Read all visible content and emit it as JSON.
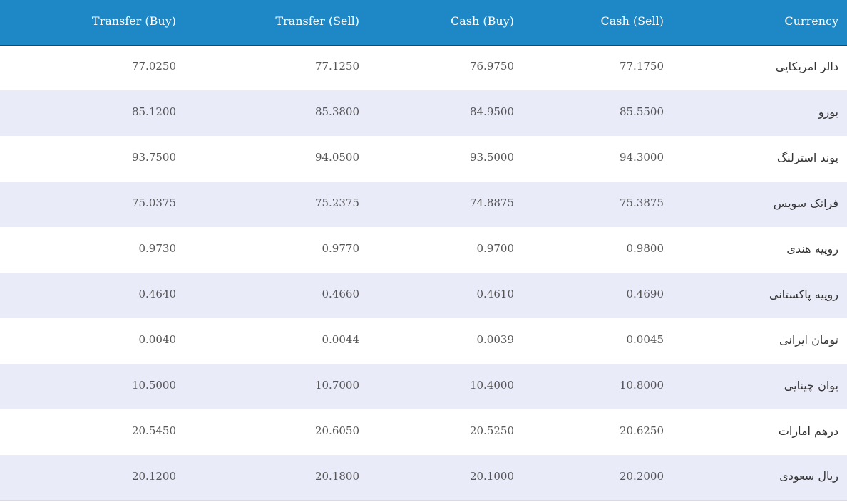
{
  "table": {
    "headers": {
      "transfer_buy": "Transfer (Buy)",
      "transfer_sell": "Transfer (Sell)",
      "cash_buy": "Cash (Buy)",
      "cash_sell": "Cash (Sell)",
      "currency": "Currency"
    },
    "rows": [
      {
        "transfer_buy": "77.0250",
        "transfer_sell": "77.1250",
        "cash_buy": "76.9750",
        "cash_sell": "77.1750",
        "currency": "دالر امریکایی"
      },
      {
        "transfer_buy": "85.1200",
        "transfer_sell": "85.3800",
        "cash_buy": "84.9500",
        "cash_sell": "85.5500",
        "currency": "یورو"
      },
      {
        "transfer_buy": "93.7500",
        "transfer_sell": "94.0500",
        "cash_buy": "93.5000",
        "cash_sell": "94.3000",
        "currency": "پوند استرلنگ"
      },
      {
        "transfer_buy": "75.0375",
        "transfer_sell": "75.2375",
        "cash_buy": "74.8875",
        "cash_sell": "75.3875",
        "currency": "فرانک سویس"
      },
      {
        "transfer_buy": "0.9730",
        "transfer_sell": "0.9770",
        "cash_buy": "0.9700",
        "cash_sell": "0.9800",
        "currency": "روپیه هندی"
      },
      {
        "transfer_buy": "0.4640",
        "transfer_sell": "0.4660",
        "cash_buy": "0.4610",
        "cash_sell": "0.4690",
        "currency": "روپیه پاکستانی"
      },
      {
        "transfer_buy": "0.0040",
        "transfer_sell": "0.0044",
        "cash_buy": "0.0039",
        "cash_sell": "0.0045",
        "currency": "تومان ایرانی"
      },
      {
        "transfer_buy": "10.5000",
        "transfer_sell": "10.7000",
        "cash_buy": "10.4000",
        "cash_sell": "10.8000",
        "currency": "یوان چینایی"
      },
      {
        "transfer_buy": "20.5450",
        "transfer_sell": "20.6050",
        "cash_buy": "20.5250",
        "cash_sell": "20.6250",
        "currency": "درهم امارات"
      },
      {
        "transfer_buy": "20.1200",
        "transfer_sell": "20.1800",
        "cash_buy": "20.1000",
        "cash_sell": "20.2000",
        "currency": "ریال سعودی"
      }
    ]
  }
}
